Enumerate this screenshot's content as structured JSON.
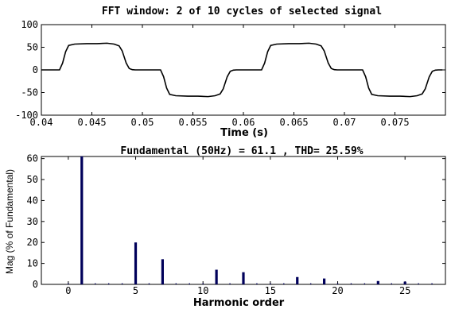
{
  "chart_data": [
    {
      "type": "line",
      "title": "FFT window: 2 of 10 cycles of selected signal",
      "xlabel": "Time (s)",
      "ylabel": "",
      "xlim": [
        0.04,
        0.08
      ],
      "ylim": [
        -100,
        100
      ],
      "xticks": [
        0.04,
        0.045,
        0.05,
        0.055,
        0.06,
        0.065,
        0.07,
        0.075
      ],
      "xtick_labels": [
        "0.04",
        "0.045",
        "0.05",
        "0.055",
        "0.06",
        "0.065",
        "0.07",
        "0.075"
      ],
      "yticks": [
        100,
        50,
        0,
        -50,
        -100
      ],
      "ytick_labels": [
        "100",
        "50",
        "0",
        "-50",
        "-100"
      ],
      "grid": false,
      "series": [
        {
          "color": "#000000",
          "x": [
            0.04,
            0.0418,
            0.0421,
            0.0424,
            0.0427,
            0.0433,
            0.0445,
            0.0455,
            0.0465,
            0.0472,
            0.0477,
            0.048,
            0.0484,
            0.0487,
            0.049,
            0.0493,
            0.05,
            0.051,
            0.0518,
            0.0521,
            0.0524,
            0.0527,
            0.0533,
            0.0545,
            0.0555,
            0.0565,
            0.0572,
            0.0577,
            0.058,
            0.0584,
            0.0587,
            0.059,
            0.0593,
            0.06,
            0.061,
            0.0618,
            0.0621,
            0.0624,
            0.0627,
            0.0633,
            0.0645,
            0.0655,
            0.0665,
            0.0672,
            0.0677,
            0.068,
            0.0684,
            0.0687,
            0.069,
            0.0693,
            0.07,
            0.071,
            0.0718,
            0.0721,
            0.0724,
            0.0727,
            0.0733,
            0.0745,
            0.0755,
            0.0765,
            0.0772,
            0.0777,
            0.078,
            0.0784,
            0.0787,
            0.079,
            0.0793,
            0.0797
          ],
          "y": [
            0,
            0,
            15,
            40,
            54,
            57,
            58,
            58,
            59,
            57,
            53,
            42,
            15,
            3,
            0.5,
            0,
            0,
            0,
            0,
            -15,
            -40,
            -54,
            -57,
            -58,
            -58,
            -59,
            -57,
            -53,
            -42,
            -15,
            -3,
            -0.5,
            0,
            0,
            0,
            0,
            15,
            40,
            54,
            57,
            58,
            58,
            59,
            57,
            53,
            42,
            15,
            3,
            0.5,
            0,
            0,
            0,
            0,
            -15,
            -40,
            -54,
            -57,
            -58,
            -58,
            -59,
            -57,
            -53,
            -42,
            -15,
            -3,
            -0.5,
            0,
            0
          ]
        }
      ]
    },
    {
      "type": "bar",
      "title": "Fundamental (50Hz) = 61.1 , THD= 25.59%",
      "xlabel": "Harmonic order",
      "ylabel": "Mag (% of Fundamental)",
      "xlim": [
        -2,
        28
      ],
      "ylim": [
        0,
        61
      ],
      "xticks": [
        0,
        5,
        10,
        15,
        20,
        25
      ],
      "xtick_labels": [
        "0",
        "5",
        "10",
        "15",
        "20",
        "25"
      ],
      "yticks": [
        0,
        10,
        20,
        30,
        40,
        50,
        60
      ],
      "ytick_labels": [
        "0",
        "10",
        "20",
        "30",
        "40",
        "50",
        "60"
      ],
      "grid": false,
      "bar_color": "#00005a",
      "categories": [
        1,
        5,
        7,
        11,
        13,
        17,
        19,
        23,
        25
      ],
      "values": [
        61.1,
        20,
        12,
        7,
        5.8,
        3.5,
        2.8,
        1.6,
        1.3
      ],
      "baseline_dots": true
    }
  ]
}
